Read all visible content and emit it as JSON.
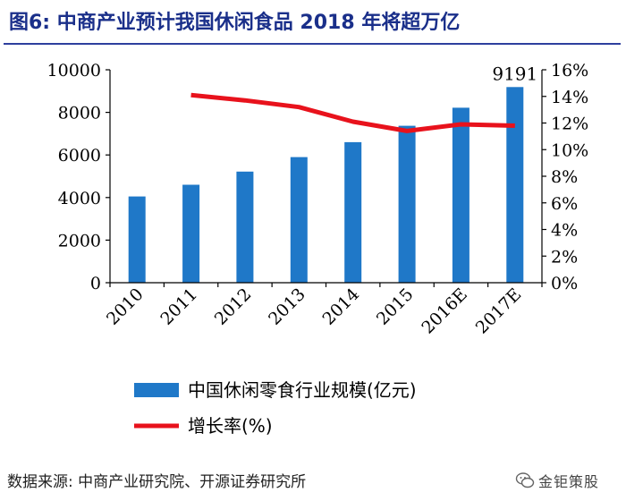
{
  "figure": {
    "title": "图6:  中商产业预计我国休闲食品 2018 年将超万亿",
    "source": "数据来源: 中商产业研究院、开源证券研究所",
    "watermark": "金钜策股"
  },
  "colors": {
    "bar": "#1f78c8",
    "line": "#e8121c",
    "title": "#1a2f8a",
    "axis": "#000000"
  },
  "chart_data": {
    "type": "bar",
    "title": "图6:  中商产业预计我国休闲食品 2018 年将超万亿",
    "categories": [
      "2010",
      "2011",
      "2012",
      "2013",
      "2014",
      "2015",
      "2016E",
      "2017E"
    ],
    "series": [
      {
        "name": "中国休闲零食行业规模(亿元)",
        "type": "bar",
        "axis": "left",
        "values": [
          4050,
          4600,
          5220,
          5900,
          6600,
          7370,
          8220,
          9191
        ]
      },
      {
        "name": "增长率(%)",
        "type": "line",
        "axis": "right",
        "values": [
          null,
          14.1,
          13.7,
          13.2,
          12.1,
          11.4,
          11.9,
          11.8
        ]
      }
    ],
    "data_labels": [
      {
        "category": "2017E",
        "text": "9191"
      }
    ],
    "y_left": {
      "min": 0,
      "max": 10000,
      "ticks": [
        0,
        2000,
        4000,
        6000,
        8000,
        10000
      ],
      "tick_labels": [
        "0",
        "2000",
        "4000",
        "6000",
        "8000",
        "10000"
      ]
    },
    "y_right": {
      "min": 0,
      "max": 16,
      "ticks": [
        0,
        2,
        4,
        6,
        8,
        10,
        12,
        14,
        16
      ],
      "tick_labels": [
        "0%",
        "2%",
        "4%",
        "6%",
        "8%",
        "10%",
        "12%",
        "14%",
        "16%"
      ]
    },
    "legend": {
      "position": "bottom",
      "entries": [
        "中国休闲零食行业规模(亿元)",
        "增长率(%)"
      ]
    },
    "grid": false
  }
}
